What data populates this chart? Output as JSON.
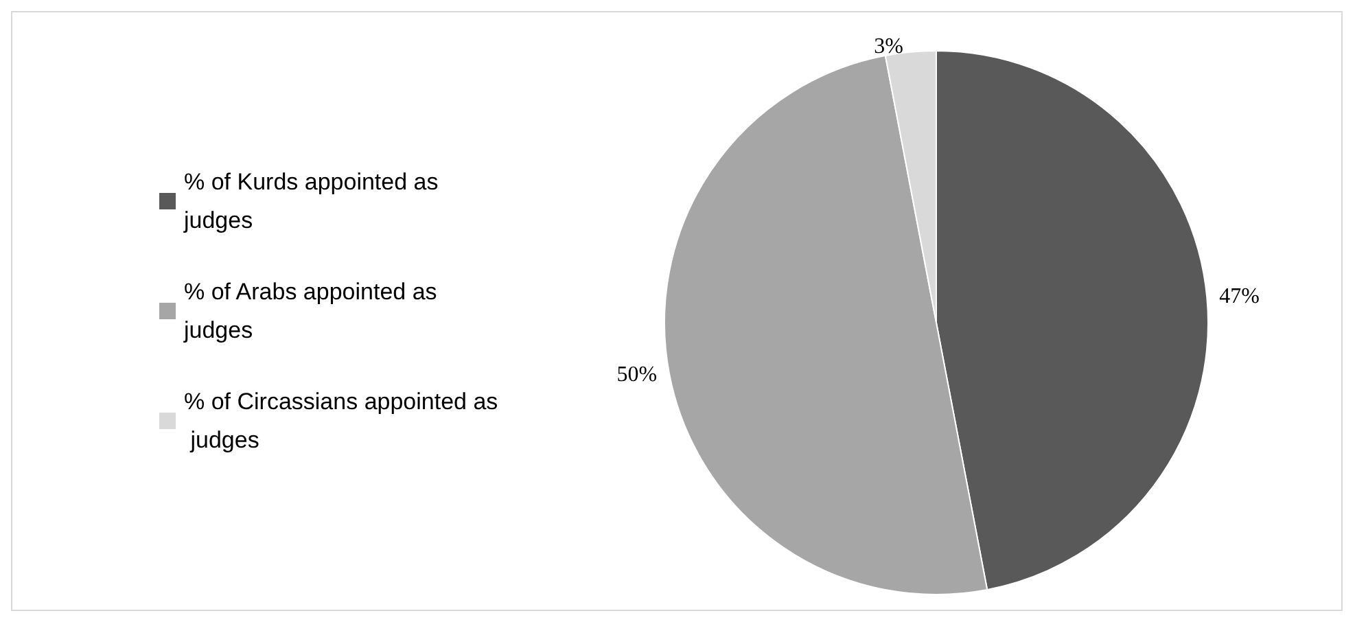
{
  "chart_data": {
    "type": "pie",
    "categories": [
      "% of Kurds appointed as judges",
      "% of Arabs appointed as judges",
      "% of Circassians appointed as judges"
    ],
    "values": [
      47,
      50,
      3
    ],
    "colors": [
      "#595959",
      "#a6a6a6",
      "#d9d9d9"
    ],
    "value_labels": [
      "47%",
      "50%",
      "3%"
    ],
    "legend": "left"
  }
}
